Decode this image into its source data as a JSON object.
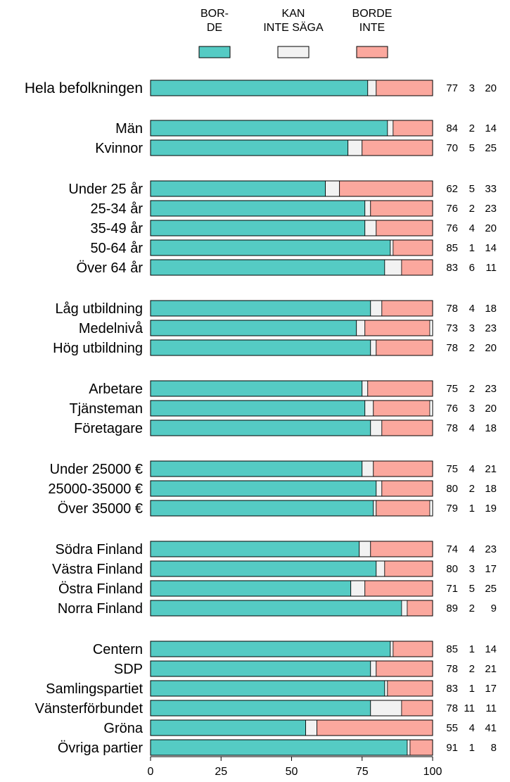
{
  "chart_data": {
    "type": "bar",
    "stacked": true,
    "orientation": "horizontal",
    "xlim": [
      0,
      100
    ],
    "xticks": [
      "0",
      "25",
      "50",
      "75",
      "100"
    ],
    "legend": {
      "position": "top",
      "items": [
        {
          "lines": [
            "BOR-",
            "DE"
          ],
          "color": "#55cbc4"
        },
        {
          "lines": [
            "KAN",
            "INTE SÄGA"
          ],
          "color": "#f2f2f2"
        },
        {
          "lines": [
            "BORDE",
            "INTE"
          ],
          "color": "#fba89e"
        }
      ]
    },
    "series_colors": [
      "#55cbc4",
      "#f2f2f2",
      "#fba89e"
    ],
    "groups": [
      {
        "rows": [
          {
            "label": "Hela befolkningen",
            "values": [
              77,
              3,
              20
            ],
            "big": true
          }
        ]
      },
      {
        "rows": [
          {
            "label": "Män",
            "values": [
              84,
              2,
              14
            ]
          },
          {
            "label": "Kvinnor",
            "values": [
              70,
              5,
              25
            ]
          }
        ]
      },
      {
        "rows": [
          {
            "label": "Under 25 år",
            "values": [
              62,
              5,
              33
            ]
          },
          {
            "label": "25-34 år",
            "values": [
              76,
              2,
              23
            ]
          },
          {
            "label": "35-49 år",
            "values": [
              76,
              4,
              20
            ]
          },
          {
            "label": "50-64 år",
            "values": [
              85,
              1,
              14
            ]
          },
          {
            "label": "Över 64 år",
            "values": [
              83,
              6,
              11
            ]
          }
        ]
      },
      {
        "rows": [
          {
            "label": "Låg utbildning",
            "values": [
              78,
              4,
              18
            ]
          },
          {
            "label": "Medelnivå",
            "values": [
              73,
              3,
              23
            ]
          },
          {
            "label": "Hög utbildning",
            "values": [
              78,
              2,
              20
            ]
          }
        ]
      },
      {
        "rows": [
          {
            "label": "Arbetare",
            "values": [
              75,
              2,
              23
            ]
          },
          {
            "label": "Tjänsteman",
            "values": [
              76,
              3,
              20
            ]
          },
          {
            "label": "Företagare",
            "values": [
              78,
              4,
              18
            ]
          }
        ]
      },
      {
        "rows": [
          {
            "label": "Under 25000 €",
            "values": [
              75,
              4,
              21
            ]
          },
          {
            "label": "25000-35000 €",
            "values": [
              80,
              2,
              18
            ]
          },
          {
            "label": "Över 35000 €",
            "values": [
              79,
              1,
              19
            ]
          }
        ]
      },
      {
        "rows": [
          {
            "label": "Södra Finland",
            "values": [
              74,
              4,
              23
            ]
          },
          {
            "label": "Västra Finland",
            "values": [
              80,
              3,
              17
            ]
          },
          {
            "label": "Östra Finland",
            "values": [
              71,
              5,
              25
            ]
          },
          {
            "label": "Norra Finland",
            "values": [
              89,
              2,
              9
            ]
          }
        ]
      },
      {
        "rows": [
          {
            "label": "Centern",
            "values": [
              85,
              1,
              14
            ]
          },
          {
            "label": "SDP",
            "values": [
              78,
              2,
              21
            ]
          },
          {
            "label": "Samlingspartiet",
            "values": [
              83,
              1,
              17
            ]
          },
          {
            "label": "Vänsterförbundet",
            "values": [
              78,
              11,
              11
            ]
          },
          {
            "label": "Gröna",
            "values": [
              55,
              4,
              41
            ]
          },
          {
            "label": "Övriga partier",
            "values": [
              91,
              1,
              8
            ]
          }
        ]
      }
    ]
  }
}
